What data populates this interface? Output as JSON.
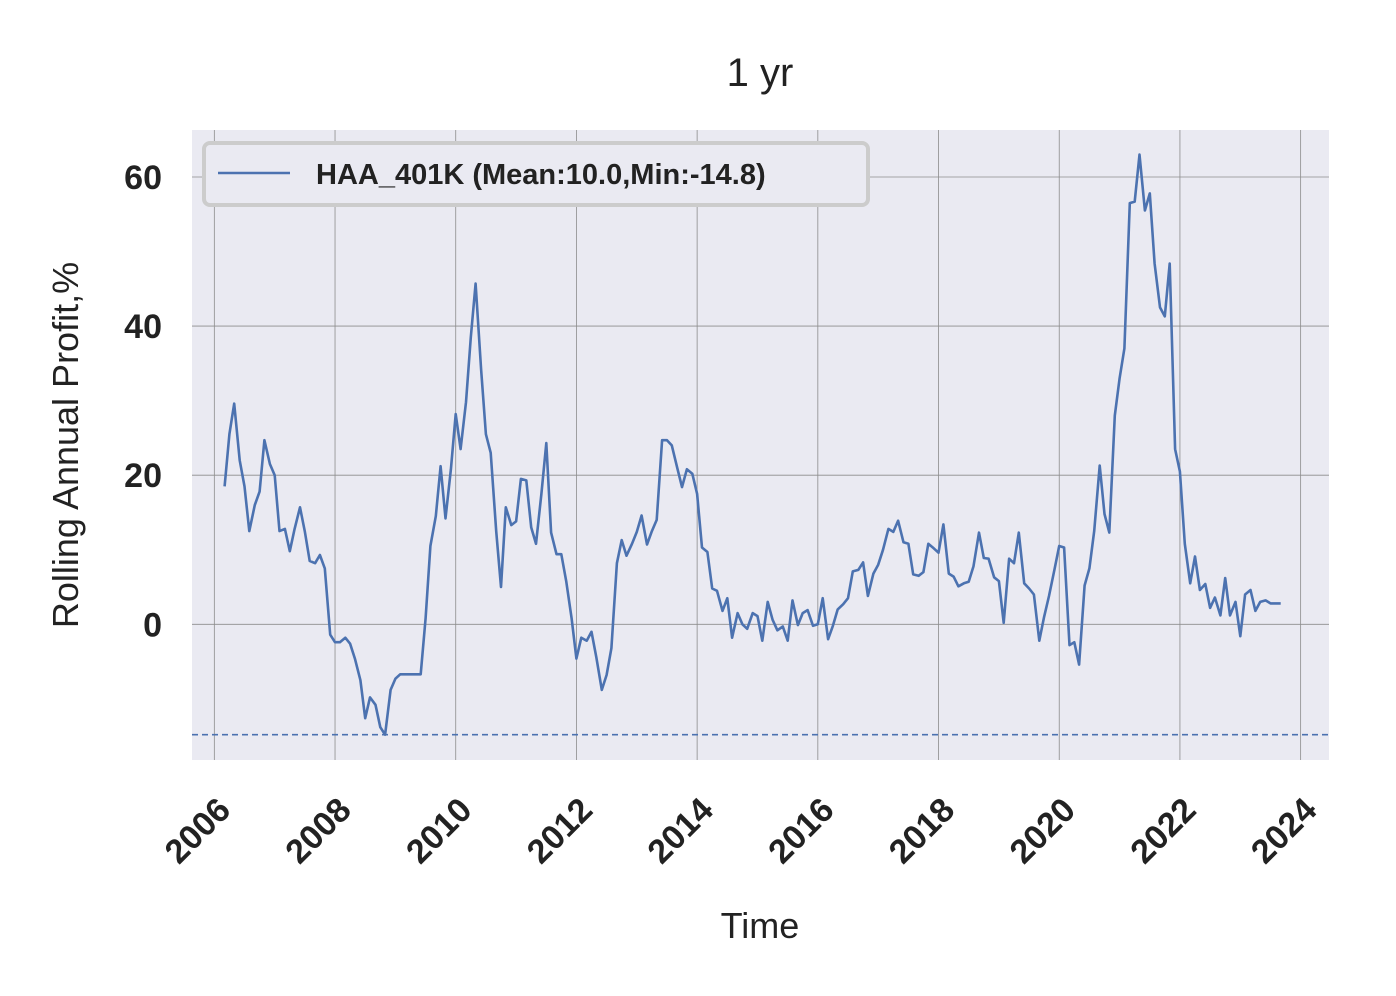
{
  "chart_data": {
    "type": "line",
    "title": "1 yr",
    "xlabel": "Time",
    "ylabel": "Rolling Annual Profit,%",
    "xlim": [
      2005.63,
      2024.47
    ],
    "ylim": [
      -18.2,
      66.3
    ],
    "x_ticks": [
      2006,
      2008,
      2010,
      2012,
      2014,
      2016,
      2018,
      2020,
      2022,
      2024
    ],
    "y_ticks": [
      0,
      20,
      40,
      60
    ],
    "grid": true,
    "legend": {
      "position": "top-left",
      "entries": [
        "HAA_401K (Mean:10.0,Min:-14.8)"
      ]
    },
    "colors": {
      "series": "#4c72b0",
      "background": "#eaeaf2",
      "grid": "#8c8c8c",
      "legend_border": "#cccccc"
    },
    "reference_line": {
      "y": -14.8,
      "style": "dashed"
    },
    "series": [
      {
        "name": "HAA_401K (Mean:10.0,Min:-14.8)",
        "x": [
          2006.17,
          2006.25,
          2006.33,
          2006.42,
          2006.5,
          2006.58,
          2006.67,
          2006.75,
          2006.83,
          2006.92,
          2007.0,
          2007.08,
          2007.17,
          2007.25,
          2007.33,
          2007.42,
          2007.5,
          2007.58,
          2007.67,
          2007.75,
          2007.83,
          2007.92,
          2008.0,
          2008.08,
          2008.17,
          2008.25,
          2008.33,
          2008.42,
          2008.5,
          2008.58,
          2008.67,
          2008.75,
          2008.83,
          2008.92,
          2009.0,
          2009.08,
          2009.17,
          2009.25,
          2009.33,
          2009.42,
          2009.5,
          2009.58,
          2009.67,
          2009.75,
          2009.83,
          2009.92,
          2010.0,
          2010.08,
          2010.17,
          2010.25,
          2010.33,
          2010.42,
          2010.5,
          2010.58,
          2010.67,
          2010.75,
          2010.83,
          2010.92,
          2011.0,
          2011.08,
          2011.17,
          2011.25,
          2011.33,
          2011.42,
          2011.5,
          2011.58,
          2011.67,
          2011.75,
          2011.83,
          2011.92,
          2012.0,
          2012.08,
          2012.17,
          2012.25,
          2012.33,
          2012.42,
          2012.5,
          2012.58,
          2012.67,
          2012.75,
          2012.83,
          2012.92,
          2013.0,
          2013.08,
          2013.17,
          2013.25,
          2013.33,
          2013.42,
          2013.5,
          2013.58,
          2013.67,
          2013.75,
          2013.83,
          2013.92,
          2014.0,
          2014.08,
          2014.17,
          2014.25,
          2014.33,
          2014.42,
          2014.5,
          2014.58,
          2014.67,
          2014.75,
          2014.83,
          2014.92,
          2015.0,
          2015.08,
          2015.17,
          2015.25,
          2015.33,
          2015.42,
          2015.5,
          2015.58,
          2015.67,
          2015.75,
          2015.83,
          2015.92,
          2016.0,
          2016.08,
          2016.17,
          2016.25,
          2016.33,
          2016.42,
          2016.5,
          2016.58,
          2016.67,
          2016.75,
          2016.83,
          2016.92,
          2017.0,
          2017.08,
          2017.17,
          2017.25,
          2017.33,
          2017.42,
          2017.5,
          2017.58,
          2017.67,
          2017.75,
          2017.83,
          2017.92,
          2018.0,
          2018.08,
          2018.17,
          2018.25,
          2018.33,
          2018.42,
          2018.5,
          2018.58,
          2018.67,
          2018.75,
          2018.83,
          2018.92,
          2019.0,
          2019.08,
          2019.17,
          2019.25,
          2019.33,
          2019.42,
          2019.5,
          2019.58,
          2019.67,
          2019.75,
          2019.83,
          2019.92,
          2020.0,
          2020.08,
          2020.17,
          2020.25,
          2020.33,
          2020.42,
          2020.5,
          2020.58,
          2020.67,
          2020.75,
          2020.83,
          2020.92,
          2021.0,
          2021.08,
          2021.17,
          2021.25,
          2021.33,
          2021.42,
          2021.5,
          2021.58,
          2021.67,
          2021.75,
          2021.83,
          2021.92,
          2022.0,
          2022.08,
          2022.17,
          2022.25,
          2022.33,
          2022.42,
          2022.5,
          2022.58,
          2022.67,
          2022.75,
          2022.83,
          2022.92,
          2023.0,
          2023.08,
          2023.17,
          2023.25,
          2023.33,
          2023.42,
          2023.5,
          2023.58,
          2023.67
        ],
        "values": [
          18.5,
          25.5,
          29.6,
          22.0,
          18.5,
          12.5,
          16.0,
          17.8,
          24.7,
          21.5,
          20.0,
          12.5,
          12.8,
          9.8,
          12.8,
          15.7,
          12.4,
          8.5,
          8.2,
          9.3,
          7.5,
          -1.4,
          -2.4,
          -2.4,
          -1.8,
          -2.6,
          -4.6,
          -7.5,
          -12.6,
          -9.8,
          -10.8,
          -13.8,
          -14.8,
          -8.8,
          -7.3,
          -6.7,
          -6.7,
          -6.7,
          -6.7,
          -6.7,
          0.8,
          10.5,
          14.5,
          21.2,
          14.2,
          20.8,
          28.2,
          23.5,
          29.8,
          38.5,
          45.7,
          34.2,
          25.5,
          23.0,
          12.5,
          5.0,
          15.7,
          13.3,
          13.8,
          19.5,
          19.3,
          13.0,
          10.8,
          17.5,
          24.3,
          12.3,
          9.4,
          9.4,
          5.8,
          0.8,
          -4.6,
          -1.8,
          -2.2,
          -1.0,
          -4.4,
          -8.8,
          -6.8,
          -3.2,
          8.2,
          11.3,
          9.2,
          10.8,
          12.4,
          14.6,
          10.7,
          12.5,
          14.0,
          24.7,
          24.7,
          24.0,
          21.0,
          18.4,
          20.8,
          20.2,
          17.5,
          10.3,
          9.7,
          4.8,
          4.5,
          1.8,
          3.5,
          -1.8,
          1.5,
          0.0,
          -0.6,
          1.5,
          1.1,
          -2.2,
          3.0,
          0.6,
          -0.8,
          -0.3,
          -2.2,
          3.2,
          -0.1,
          1.5,
          1.9,
          -0.2,
          0.0,
          3.5,
          -2.0,
          -0.2,
          2.0,
          2.7,
          3.5,
          7.1,
          7.3,
          8.3,
          3.8,
          6.8,
          8.0,
          10.0,
          12.8,
          12.4,
          13.9,
          11.0,
          10.8,
          6.7,
          6.5,
          7.0,
          10.8,
          10.2,
          9.6,
          13.4,
          6.8,
          6.4,
          5.1,
          5.5,
          5.7,
          7.8,
          12.3,
          8.9,
          8.8,
          6.3,
          5.8,
          0.2,
          8.8,
          8.2,
          12.3,
          5.5,
          4.8,
          4.0,
          -2.2,
          1.0,
          3.8,
          7.3,
          10.5,
          10.3,
          -2.8,
          -2.4,
          -5.4,
          5.2,
          7.5,
          12.5,
          21.3,
          14.8,
          12.3,
          28.0,
          33.0,
          37.0,
          56.5,
          56.7,
          63.0,
          55.5,
          57.8,
          48.4,
          42.5,
          41.3,
          48.4,
          23.5,
          20.5,
          10.8,
          5.5,
          9.1,
          4.6,
          5.4,
          2.2,
          3.6,
          1.2,
          6.2,
          1.2,
          3.0,
          -1.6,
          4.0,
          4.6,
          1.8,
          3.0,
          3.2,
          2.8,
          2.8,
          2.8
        ]
      }
    ]
  }
}
